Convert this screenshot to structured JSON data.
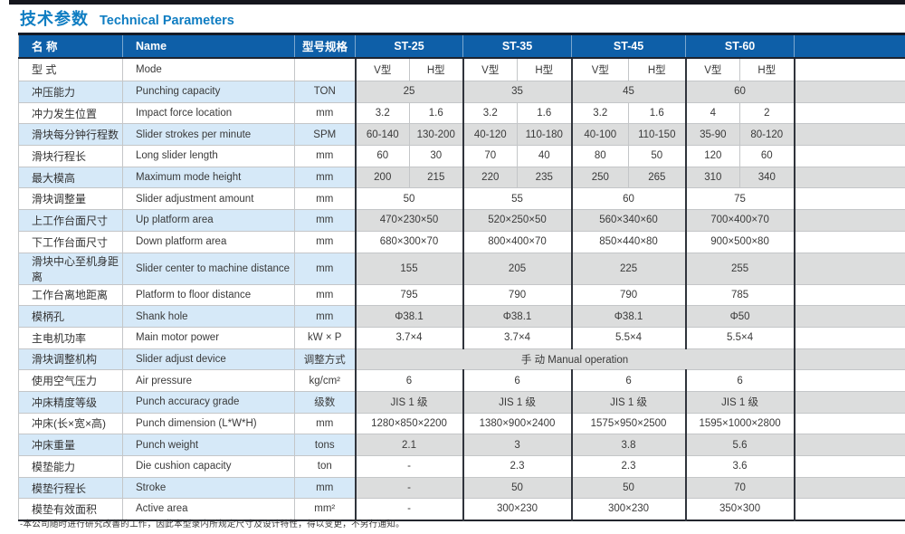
{
  "page": {
    "title_zh": "技术参数",
    "title_en": "Technical Parameters",
    "footnote": "-本公司随时进行研究改善的工作，因此本型录内所规定尺寸及设计特性，得以变更，不另行通知。"
  },
  "colors": {
    "header_bg": "#0e5fa8",
    "title": "#0f7dc2",
    "tint_blue": "#d6e9f8",
    "tint_grey": "#dcdddd",
    "border_dark": "#30343c",
    "border_light": "#c4c6c8",
    "top_bar": "#15161d"
  },
  "table": {
    "header": {
      "name_zh": "名 称",
      "name_en": "Name",
      "spec": "型号规格",
      "models": [
        "ST-25",
        "ST-35",
        "ST-45",
        "ST-60"
      ]
    },
    "rows": [
      {
        "zh": "型 式",
        "en": "Mode",
        "unit": "",
        "merge": "split",
        "mode": true,
        "tint": false,
        "values": [
          "V型",
          "H型",
          "V型",
          "H型",
          "V型",
          "H型",
          "V型",
          "H型"
        ]
      },
      {
        "zh": "冲压能力",
        "en": "Punching capacity",
        "unit": "TON",
        "merge": "pair",
        "tint": true,
        "values": [
          "25",
          "35",
          "45",
          "60"
        ]
      },
      {
        "zh": "冲力发生位置",
        "en": "Impact force location",
        "unit": "mm",
        "merge": "split",
        "tint": false,
        "values": [
          "3.2",
          "1.6",
          "3.2",
          "1.6",
          "3.2",
          "1.6",
          "4",
          "2"
        ]
      },
      {
        "zh": "滑块每分钟行程数",
        "en": "Slider strokes per minute",
        "unit": "SPM",
        "merge": "split",
        "tint": true,
        "values": [
          "60-140",
          "130-200",
          "40-120",
          "110-180",
          "40-100",
          "110-150",
          "35-90",
          "80-120"
        ]
      },
      {
        "zh": "滑块行程长",
        "en": "Long slider length",
        "unit": "mm",
        "merge": "split",
        "tint": false,
        "values": [
          "60",
          "30",
          "70",
          "40",
          "80",
          "50",
          "120",
          "60"
        ]
      },
      {
        "zh": "最大模高",
        "en": "Maximum mode height",
        "unit": "mm",
        "merge": "split",
        "tint": true,
        "values": [
          "200",
          "215",
          "220",
          "235",
          "250",
          "265",
          "310",
          "340"
        ]
      },
      {
        "zh": "滑块调整量",
        "en": "Slider adjustment amount",
        "unit": "mm",
        "merge": "pair",
        "tint": false,
        "values": [
          "50",
          "55",
          "60",
          "75"
        ]
      },
      {
        "zh": "上工作台面尺寸",
        "en": "Up platform area",
        "unit": "mm",
        "merge": "pair",
        "tint": true,
        "values": [
          "470×230×50",
          "520×250×50",
          "560×340×60",
          "700×400×70"
        ]
      },
      {
        "zh": "下工作台面尺寸",
        "en": "Down platform area",
        "unit": "mm",
        "merge": "pair",
        "tint": false,
        "values": [
          "680×300×70",
          "800×400×70",
          "850×440×80",
          "900×500×80"
        ]
      },
      {
        "zh": "滑块中心至机身距离",
        "en": "Slider center to machine distance",
        "unit": "mm",
        "merge": "pair",
        "tint": true,
        "values": [
          "155",
          "205",
          "225",
          "255"
        ]
      },
      {
        "zh": "工作台离地距离",
        "en": "Platform to floor distance",
        "unit": "mm",
        "merge": "pair",
        "tint": false,
        "values": [
          "795",
          "790",
          "790",
          "785"
        ]
      },
      {
        "zh": "模柄孔",
        "en": "Shank hole",
        "unit": "mm",
        "merge": "pair",
        "tint": true,
        "values": [
          "Φ38.1",
          "Φ38.1",
          "Φ38.1",
          "Φ50"
        ]
      },
      {
        "zh": "主电机功率",
        "en": "Main motor power",
        "unit": "kW × P",
        "merge": "pair",
        "tint": false,
        "values": [
          "3.7×4",
          "3.7×4",
          "5.5×4",
          "5.5×4"
        ]
      },
      {
        "zh": "滑块调整机构",
        "en": "Slider adjust device",
        "unit": "调整方式",
        "merge": "all",
        "tint": true,
        "values": [
          "手 动 Manual operation"
        ]
      },
      {
        "zh": "使用空气压力",
        "en": "Air pressure",
        "unit": "kg/cm²",
        "merge": "pair",
        "tint": false,
        "values": [
          "6",
          "6",
          "6",
          "6"
        ]
      },
      {
        "zh": "冲床精度等级",
        "en": "Punch accuracy grade",
        "unit": "级数",
        "merge": "pair",
        "tint": true,
        "values": [
          "JIS 1 级",
          "JIS 1 级",
          "JIS 1 级",
          "JIS 1 级"
        ]
      },
      {
        "zh": "冲床(长×宽×高)",
        "en": "Punch dimension (L*W*H)",
        "unit": "mm",
        "merge": "pair",
        "tint": false,
        "values": [
          "1280×850×2200",
          "1380×900×2400",
          "1575×950×2500",
          "1595×1000×2800"
        ]
      },
      {
        "zh": "冲床重量",
        "en": "Punch weight",
        "unit": "tons",
        "merge": "pair",
        "tint": true,
        "values": [
          "2.1",
          "3",
          "3.8",
          "5.6"
        ]
      },
      {
        "zh": "模垫能力",
        "en": "Die cushion capacity",
        "unit": "ton",
        "merge": "pair",
        "tint": false,
        "values": [
          "-",
          "2.3",
          "2.3",
          "3.6"
        ]
      },
      {
        "zh": "模垫行程长",
        "en": "Stroke",
        "unit": "mm",
        "merge": "pair",
        "tint": true,
        "values": [
          "-",
          "50",
          "50",
          "70"
        ]
      },
      {
        "zh": "模垫有效面积",
        "en": "Active area",
        "unit": "mm²",
        "merge": "pair",
        "tint": false,
        "values": [
          "-",
          "300×230",
          "300×230",
          "350×300"
        ]
      }
    ]
  }
}
